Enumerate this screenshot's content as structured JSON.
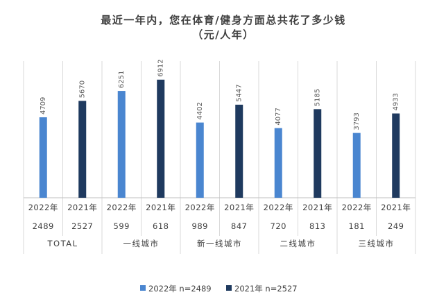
{
  "chart_data": {
    "type": "bar",
    "title": "最近一年内，您在体育/健身方面总共花了多少钱",
    "subtitle": "（元/人年）",
    "groups": [
      {
        "name": "TOTAL",
        "items": [
          {
            "year": "2022年",
            "n": "2489",
            "value": 4709
          },
          {
            "year": "2021年",
            "n": "2527",
            "value": 5670
          }
        ]
      },
      {
        "name": "一线城市",
        "items": [
          {
            "year": "2022年",
            "n": "599",
            "value": 6251
          },
          {
            "year": "2021年",
            "n": "618",
            "value": 6912
          }
        ]
      },
      {
        "name": "新一线城市",
        "items": [
          {
            "year": "2022年",
            "n": "989",
            "value": 4402
          },
          {
            "year": "2021年",
            "n": "847",
            "value": 5447
          }
        ]
      },
      {
        "name": "二线城市",
        "items": [
          {
            "year": "2022年",
            "n": "720",
            "value": 4077
          },
          {
            "year": "2021年",
            "n": "813",
            "value": 5185
          }
        ]
      },
      {
        "name": "三线城市",
        "items": [
          {
            "year": "2022年",
            "n": "181",
            "value": 3793
          },
          {
            "year": "2021年",
            "n": "249",
            "value": 4933
          }
        ]
      }
    ],
    "series": [
      {
        "name": "2022年 n=2489",
        "color": "#4a86d0"
      },
      {
        "name": "2021年 n=2527",
        "color": "#1f3a5f"
      }
    ],
    "legend_position": "bottom",
    "gridlines": "vertical"
  }
}
